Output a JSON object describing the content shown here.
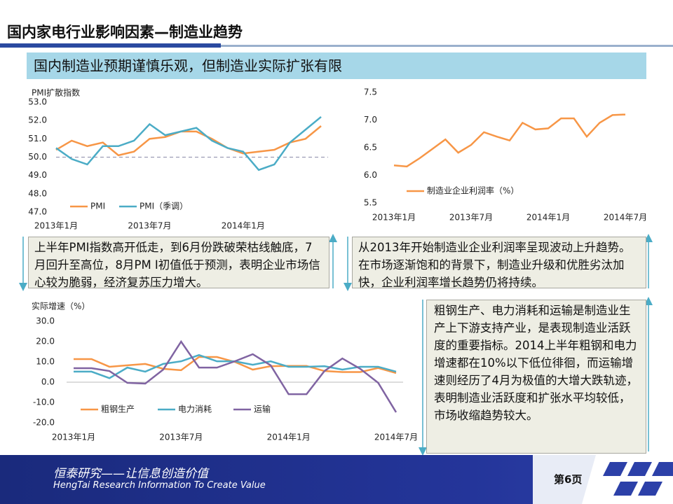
{
  "header": {
    "title": "国内家电行业影响因素—制造业趋势",
    "subtitle": "国内制造业预期谨慎乐观，但制造业实际扩张有限"
  },
  "chart_data": [
    {
      "type": "line",
      "y_label": "PMI扩散指数",
      "categories": [
        "2013年1月",
        null,
        null,
        null,
        null,
        null,
        "2013年7月",
        null,
        null,
        null,
        null,
        null,
        "2014年1月",
        null,
        null,
        null,
        null,
        null
      ],
      "series": [
        {
          "name": "PMI",
          "color": "#f79646",
          "values": [
            50.4,
            50.9,
            50.6,
            50.8,
            50.1,
            50.3,
            51.0,
            51.1,
            51.4,
            51.4,
            51.0,
            50.5,
            50.2,
            50.3,
            50.4,
            50.8,
            51.0,
            51.7
          ]
        },
        {
          "name": "PMI（季调）",
          "color": "#4bacc6",
          "values": [
            50.5,
            49.9,
            49.6,
            50.6,
            50.6,
            50.9,
            51.8,
            51.2,
            51.4,
            51.6,
            50.9,
            50.5,
            50.3,
            49.3,
            49.6,
            50.8,
            51.5,
            52.2
          ]
        }
      ],
      "ylim": [
        47,
        53
      ],
      "yticks": [
        {
          "value": 47,
          "label": "47.0"
        },
        {
          "value": 48,
          "label": "48.0"
        },
        {
          "value": 49,
          "label": "49.0"
        },
        {
          "value": 50,
          "label": "50.0"
        },
        {
          "value": 51,
          "label": "51.0"
        },
        {
          "value": 52,
          "label": "52.0"
        },
        {
          "value": 53,
          "label": "53.0"
        }
      ],
      "reference_line": 50,
      "legend": "bottom"
    },
    {
      "type": "line",
      "categories": [
        "2013年1月",
        null,
        null,
        null,
        null,
        null,
        "2013年7月",
        null,
        null,
        null,
        null,
        null,
        "2014年1月",
        null,
        null,
        null,
        null,
        null,
        "2014年7月"
      ],
      "series": [
        {
          "name": "制造业企业利润率（%）",
          "color": "#f79646",
          "values": [
            6.18,
            6.16,
            6.31,
            6.48,
            6.65,
            6.41,
            6.55,
            6.78,
            6.7,
            6.63,
            6.95,
            6.83,
            6.85,
            7.03,
            7.03,
            6.7,
            6.95,
            7.09,
            7.1
          ]
        }
      ],
      "ylim": [
        5.5,
        7.5
      ],
      "yticks": [
        5.5,
        {
          "value": 6,
          "label": "6.0"
        },
        6.5,
        {
          "value": 7,
          "label": "7.0"
        },
        7.5
      ],
      "legend": "bottom left"
    },
    {
      "type": "line",
      "y_label": "实际增速（%）",
      "categories": [
        "2013年1月",
        null,
        null,
        null,
        null,
        null,
        "2013年7月",
        null,
        null,
        null,
        null,
        null,
        "2014年1月",
        null,
        null,
        null,
        null,
        null,
        "2014年7月"
      ],
      "series": [
        {
          "name": "粗钢生产",
          "color": "#f79646",
          "values": [
            11.4,
            11.4,
            7.6,
            8.3,
            9.0,
            6.6,
            5.9,
            12.4,
            12.4,
            10.0,
            6.2,
            7.9,
            8.0,
            8.0,
            5.5,
            5.0,
            5.0,
            7.0,
            4.5
          ]
        },
        {
          "name": "电力消耗",
          "color": "#4bacc6",
          "values": [
            5.2,
            5.2,
            2.0,
            7.2,
            5.2,
            9.0,
            10.3,
            13.4,
            10.3,
            10.3,
            8.6,
            10.3,
            7.6,
            7.6,
            7.9,
            6.2,
            7.6,
            7.6,
            5.2
          ]
        },
        {
          "name": "运输",
          "color": "#8064a2",
          "values": [
            6.9,
            6.9,
            5.5,
            -0.3,
            -0.7,
            6.2,
            20.0,
            7.2,
            7.2,
            10.3,
            13.8,
            8.3,
            -5.9,
            -5.9,
            5.5,
            11.7,
            6.6,
            -0.3,
            -14.8
          ]
        }
      ],
      "ylim": [
        -20,
        30
      ],
      "yticks": [
        {
          "value": -20,
          "label": "-20.0"
        },
        {
          "value": -10,
          "label": "-10.0"
        },
        {
          "value": 0,
          "label": "0.0"
        },
        {
          "value": 10,
          "label": "10.0"
        },
        {
          "value": 20,
          "label": "20.0"
        },
        {
          "value": 30,
          "label": "30.0"
        }
      ],
      "legend": "bottom"
    }
  ],
  "notes": [
    "上半年PMI指数高开低走，到6月份跌破荣枯线触底，7月回升至高位，8月PM I初值低于预测，表明企业市场信心较为脆弱，经济复苏压力增大。",
    "从2013年开始制造业企业利润率呈现波动上升趋势。在市场逐渐饱和的背景下，制造业升级和优胜劣汰加快，企业利润率增长趋势仍将持续。",
    "粗钢生产、电力消耗和运输是制造业生产上下游支持产业，是表现制造业活跃度的重要指标。2014上半年粗钢和电力增速都在10%以下低位徘徊，而运输增速则经历了4月为极值的大增大跌轨迹，表明制造业活跃度和扩张水平均较低，市场收缩趋势较大。"
  ],
  "footer": {
    "slogan": "恒泰研究——让信息创造价值",
    "slogan_en": "HengTai Research Information To Create Value",
    "page": "第6页"
  }
}
